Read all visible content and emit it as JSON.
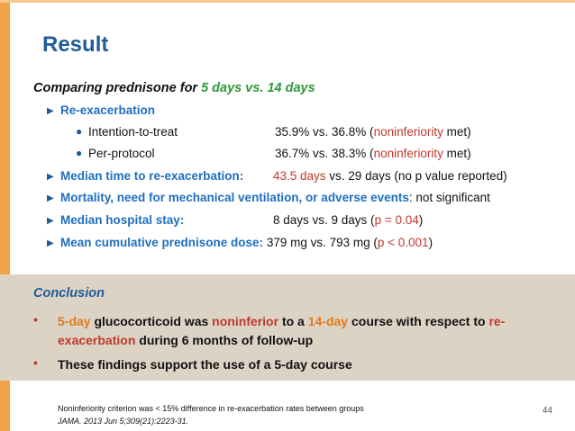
{
  "title": "Result",
  "subtitle": {
    "prefix": "Comparing prednisone for ",
    "accent": "5 days vs. 14 days"
  },
  "reexacerbation": {
    "label": "Re-exacerbation",
    "items": [
      {
        "label": "Intention-to-treat",
        "value": "35.9% vs. 36.8% (",
        "highlight": "noninferiority",
        "suffix": " met)"
      },
      {
        "label": "Per-protocol",
        "value": "36.7% vs. 38.3% (",
        "highlight": "noninferiority",
        "suffix": " met)"
      }
    ]
  },
  "median_time": {
    "label": "Median time to re-exacerbation:",
    "highlight": "43.5 days",
    "rest": " vs. 29 days (no p value reported)"
  },
  "mortality": {
    "label": "Mortality, need for mechanical ventilation, or adverse events",
    "rest": ": not significant"
  },
  "hospital_stay": {
    "label": "Median hospital stay:",
    "value": "8 days vs. 9 days (",
    "highlight": "p = 0.04",
    "suffix": ")"
  },
  "prednisone_dose": {
    "label": "Mean cumulative prednisone dose:",
    "value": " 379 mg vs. 793 mg (",
    "highlight": "p < 0.001",
    "suffix": ")"
  },
  "conclusion": {
    "title": "Conclusion",
    "bullet1": {
      "a": "5-day",
      "b": " glucocorticoid was ",
      "c": "noninferior",
      "d": " to a ",
      "e": "14-day",
      "f": " course with respect to ",
      "g": "re-exacerbation",
      "h": " during 6 months of follow-up"
    },
    "bullet2": "These findings support the use of a 5-day course"
  },
  "footnote": "Noninferiority criterion was < 15% difference in re-exacerbation rates between groups",
  "citation": "JAMA. 2013 Jun 5;309(21):2223-31.",
  "page_number": "44"
}
